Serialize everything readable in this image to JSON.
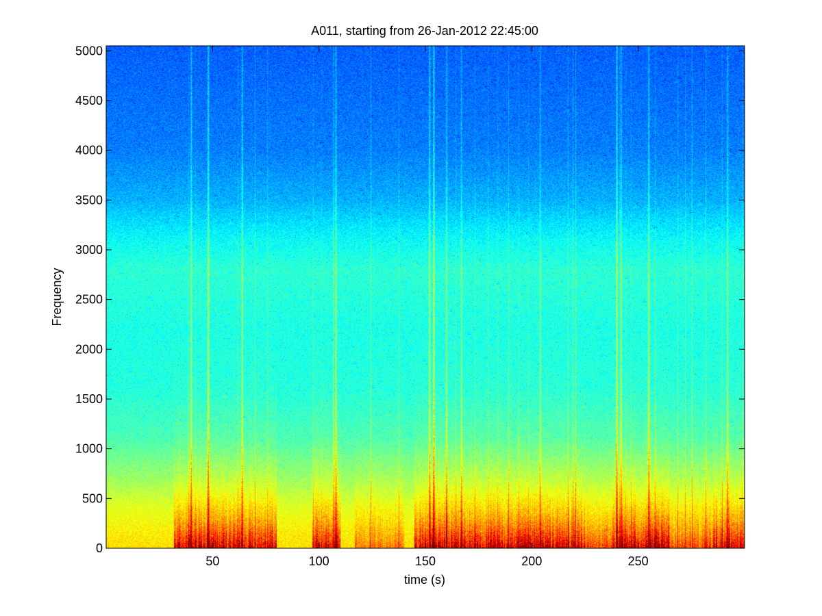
{
  "chart_data": {
    "type": "heatmap",
    "title": "A011, starting from 26-Jan-2012 22:45:00",
    "xlabel": "time (s)",
    "ylabel": "Frequency",
    "xlim": [
      0,
      300
    ],
    "ylim": [
      0,
      5050
    ],
    "xticks": [
      50,
      100,
      150,
      200,
      250
    ],
    "yticks": [
      0,
      500,
      1000,
      1500,
      2000,
      2500,
      3000,
      3500,
      4000,
      4500,
      5000
    ],
    "grid": false,
    "legend": "none",
    "colormap": "jet",
    "colormap_stops": [
      "#00008f",
      "#0000ff",
      "#0080ff",
      "#00ffff",
      "#80ff80",
      "#ffff00",
      "#ff8000",
      "#ff0000",
      "#800000"
    ],
    "background_profile": {
      "frequency": [
        0,
        150,
        400,
        700,
        1100,
        1600,
        2200,
        2800,
        3100,
        3500,
        4000,
        5050
      ],
      "level": [
        0.66,
        0.64,
        0.6,
        0.53,
        0.45,
        0.41,
        0.4,
        0.42,
        0.38,
        0.3,
        0.25,
        0.22
      ]
    },
    "event_segments": [
      {
        "start": 32,
        "end": 80,
        "strength": 0.8
      },
      {
        "start": 97,
        "end": 110,
        "strength": 0.75
      },
      {
        "start": 117,
        "end": 140,
        "strength": 0.35
      },
      {
        "start": 145,
        "end": 225,
        "strength": 0.8
      },
      {
        "start": 225,
        "end": 238,
        "strength": 0.45
      },
      {
        "start": 238,
        "end": 265,
        "strength": 0.85
      },
      {
        "start": 265,
        "end": 285,
        "strength": 0.5
      },
      {
        "start": 285,
        "end": 300,
        "strength": 0.8
      }
    ],
    "broadband_streaks": [
      {
        "time": 40,
        "strength": 0.5
      },
      {
        "time": 48,
        "strength": 0.65
      },
      {
        "time": 64,
        "strength": 0.5
      },
      {
        "time": 108,
        "strength": 0.45
      },
      {
        "time": 152,
        "strength": 0.55
      },
      {
        "time": 154,
        "strength": 0.65
      },
      {
        "time": 160,
        "strength": 0.45
      },
      {
        "time": 167,
        "strength": 0.4
      },
      {
        "time": 204,
        "strength": 0.35
      },
      {
        "time": 240,
        "strength": 0.6
      },
      {
        "time": 242,
        "strength": 0.45
      },
      {
        "time": 255,
        "strength": 0.55
      },
      {
        "time": 292,
        "strength": 0.45
      }
    ]
  }
}
